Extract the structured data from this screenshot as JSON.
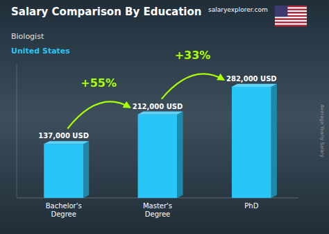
{
  "chart_data": {
    "type": "bar",
    "title": "Salary Comparison By Education",
    "subtitle": "Biologist",
    "location": "United States",
    "source": "salaryexplorer.com",
    "ylabel": "Average Yearly Salary",
    "categories": [
      "Bachelor's\nDegree",
      "Master's\nDegree",
      "PhD"
    ],
    "values": [
      137000,
      212000,
      282000
    ],
    "value_labels": [
      "137,000 USD",
      "212,000 USD",
      "282,000 USD"
    ],
    "annotations": [
      "+55%",
      "+33%"
    ],
    "color": "#29c5f6",
    "ylim": [
      0,
      340000
    ],
    "data_labels": true,
    "tick_labels": "x",
    "grid": false
  }
}
